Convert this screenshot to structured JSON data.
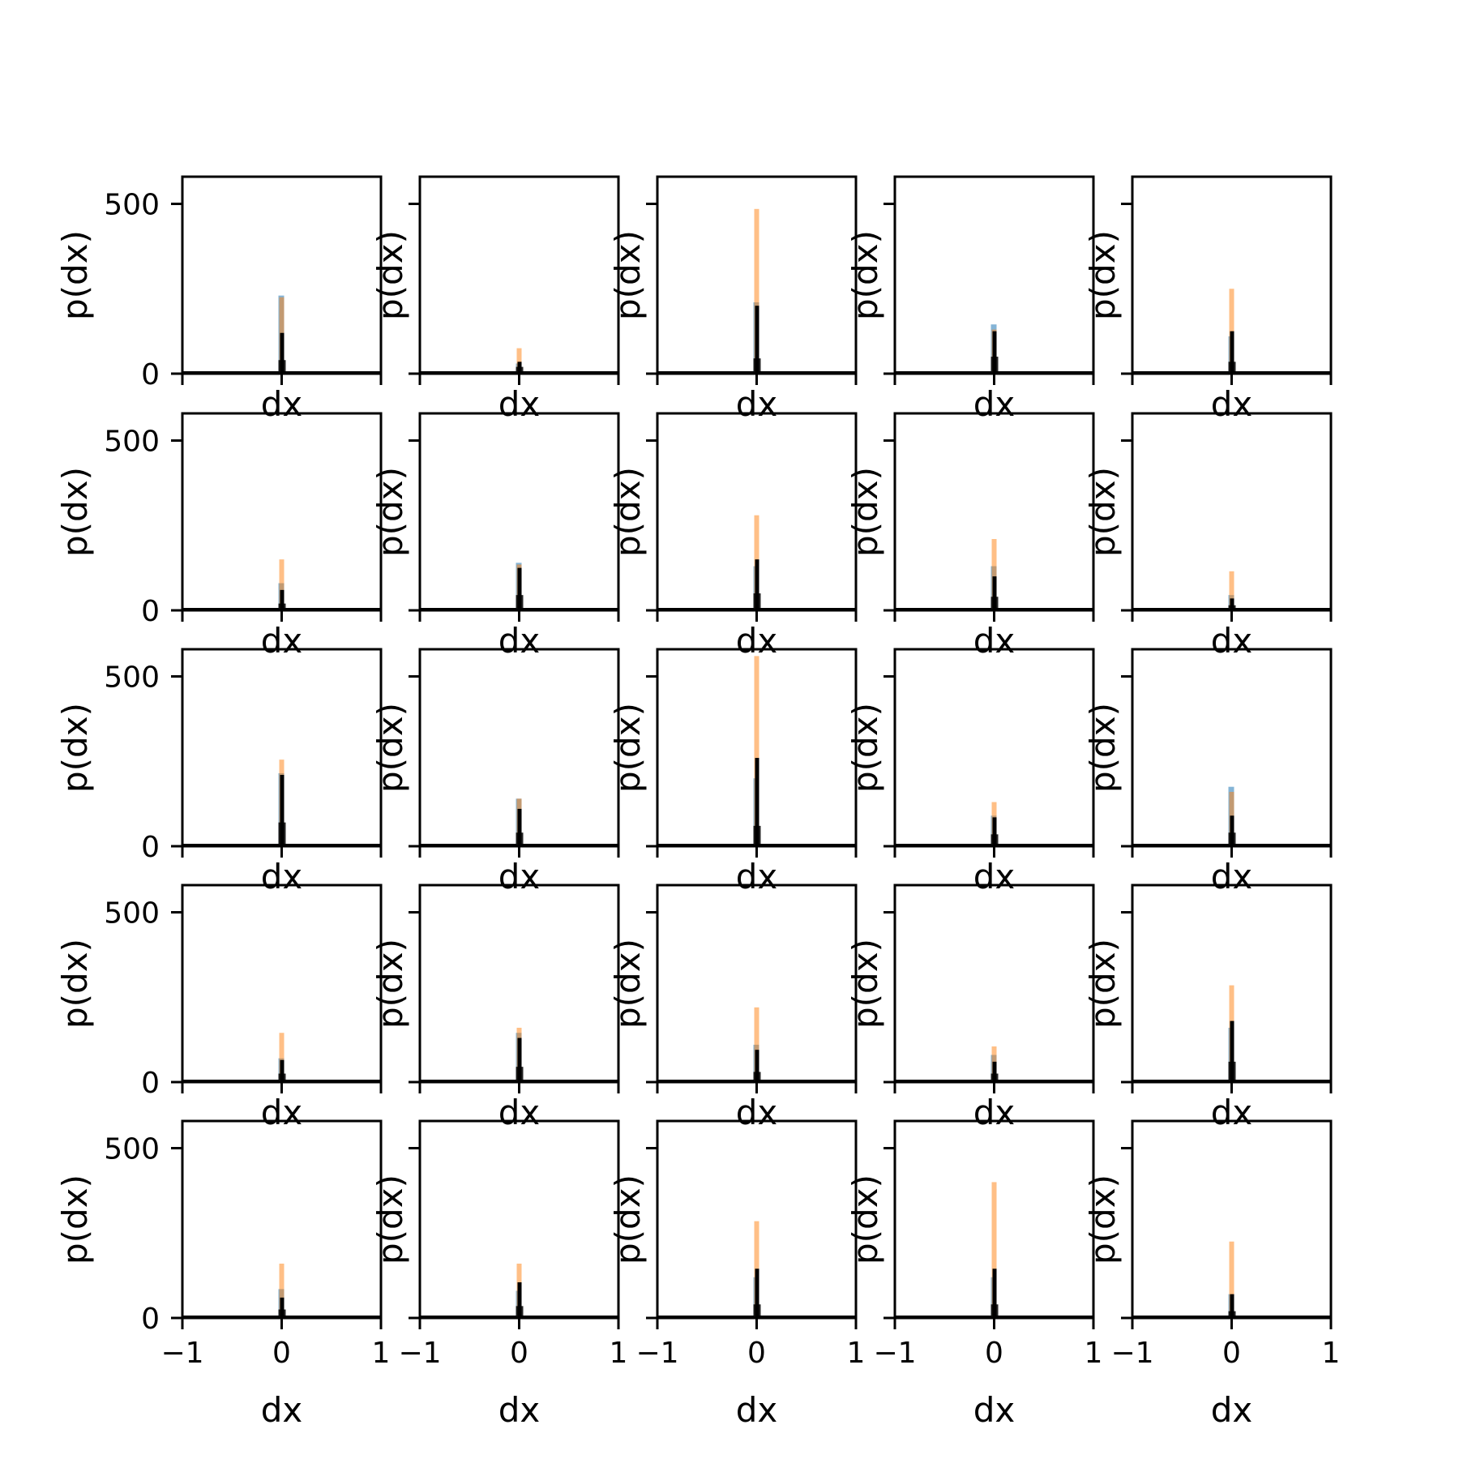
{
  "chart_data": {
    "type": "histogram-grid",
    "rows": 5,
    "cols": 5,
    "xlabel": "dx",
    "ylabel": "p(dx)",
    "xlim": [
      -1,
      1
    ],
    "ylim": [
      0,
      580
    ],
    "xticks": [
      -1,
      0,
      1
    ],
    "xtick_labels": [
      "−1",
      "0",
      "1"
    ],
    "yticks": [
      0,
      500
    ],
    "ytick_labels": [
      "0",
      "500"
    ],
    "colors": {
      "series_a": "#1f77b4",
      "series_b": "#ff7f0e",
      "reference": "#000000"
    },
    "panels": [
      {
        "a": 230,
        "b": 225,
        "k": 120,
        "k2": 40
      },
      {
        "a": 30,
        "b": 75,
        "k": 35,
        "k2": 20
      },
      {
        "a": 210,
        "b": 485,
        "k": 200,
        "k2": 45
      },
      {
        "a": 145,
        "b": 130,
        "k": 125,
        "k2": 50
      },
      {
        "a": 110,
        "b": 250,
        "k": 125,
        "k2": 35
      },
      {
        "a": 80,
        "b": 150,
        "k": 60,
        "k2": 20
      },
      {
        "a": 140,
        "b": 135,
        "k": 125,
        "k2": 45
      },
      {
        "a": 130,
        "b": 280,
        "k": 150,
        "k2": 50
      },
      {
        "a": 130,
        "b": 210,
        "k": 100,
        "k2": 40
      },
      {
        "a": 45,
        "b": 115,
        "k": 35,
        "k2": 15
      },
      {
        "a": 215,
        "b": 255,
        "k": 210,
        "k2": 70
      },
      {
        "a": 140,
        "b": 140,
        "k": 110,
        "k2": 40
      },
      {
        "a": 200,
        "b": 560,
        "k": 260,
        "k2": 60
      },
      {
        "a": 90,
        "b": 130,
        "k": 85,
        "k2": 35
      },
      {
        "a": 175,
        "b": 160,
        "k": 90,
        "k2": 40
      },
      {
        "a": 70,
        "b": 145,
        "k": 65,
        "k2": 25
      },
      {
        "a": 145,
        "b": 160,
        "k": 130,
        "k2": 45
      },
      {
        "a": 110,
        "b": 220,
        "k": 95,
        "k2": 30
      },
      {
        "a": 80,
        "b": 105,
        "k": 60,
        "k2": 25
      },
      {
        "a": 160,
        "b": 285,
        "k": 180,
        "k2": 60
      },
      {
        "a": 85,
        "b": 160,
        "k": 60,
        "k2": 25
      },
      {
        "a": 80,
        "b": 160,
        "k": 105,
        "k2": 35
      },
      {
        "a": 120,
        "b": 285,
        "k": 145,
        "k2": 40
      },
      {
        "a": 120,
        "b": 400,
        "k": 145,
        "k2": 40
      },
      {
        "a": 70,
        "b": 225,
        "k": 70,
        "k2": 20
      }
    ]
  }
}
